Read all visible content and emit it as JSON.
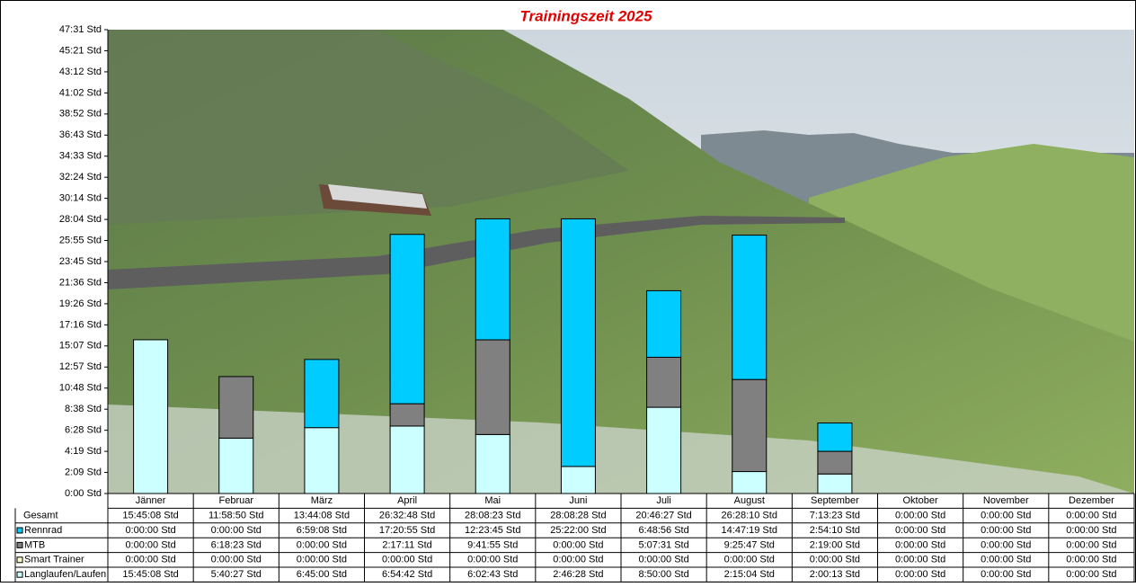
{
  "chart_data": {
    "type": "bar",
    "stacked": true,
    "title": "Trainingszeit 2025",
    "categories": [
      "Jänner",
      "Februar",
      "März",
      "April",
      "Mai",
      "Juni",
      "Juli",
      "August",
      "September",
      "Oktober",
      "November",
      "Dezember"
    ],
    "ylim": [
      0,
      47.52
    ],
    "yticks": [
      {
        "value": 0,
        "label": "0:00 Std"
      },
      {
        "value": 2.16,
        "label": "2:09 Std"
      },
      {
        "value": 4.32,
        "label": "4:19 Std"
      },
      {
        "value": 6.48,
        "label": "6:28 Std"
      },
      {
        "value": 8.64,
        "label": "8:38 Std"
      },
      {
        "value": 10.8,
        "label": "10:48 Std"
      },
      {
        "value": 12.96,
        "label": "12:57 Std"
      },
      {
        "value": 15.12,
        "label": "15:07 Std"
      },
      {
        "value": 17.28,
        "label": "17:16 Std"
      },
      {
        "value": 19.44,
        "label": "19:26 Std"
      },
      {
        "value": 21.6,
        "label": "21:36 Std"
      },
      {
        "value": 23.76,
        "label": "23:45 Std"
      },
      {
        "value": 25.92,
        "label": "25:55 Std"
      },
      {
        "value": 28.08,
        "label": "28:04 Std"
      },
      {
        "value": 30.24,
        "label": "30:14 Std"
      },
      {
        "value": 32.4,
        "label": "32:24 Std"
      },
      {
        "value": 34.56,
        "label": "34:33 Std"
      },
      {
        "value": 36.72,
        "label": "36:43 Std"
      },
      {
        "value": 38.88,
        "label": "38:52 Std"
      },
      {
        "value": 41.04,
        "label": "41:02 Std"
      },
      {
        "value": 43.2,
        "label": "43:12 Std"
      },
      {
        "value": 45.36,
        "label": "45:21 Std"
      },
      {
        "value": 47.52,
        "label": "47:31 Std"
      }
    ],
    "total_label": "Gesamt",
    "totals": [
      "15:45:08 Std",
      "11:58:50 Std",
      "13:44:08 Std",
      "26:32:48 Std",
      "28:08:23 Std",
      "28:08:28 Std",
      "20:46:27 Std",
      "26:28:10 Std",
      "7:13:23 Std",
      "0:00:00 Std",
      "0:00:00 Std",
      "0:00:00 Std"
    ],
    "series": [
      {
        "name": "Rennrad",
        "color": "#00ccff",
        "values": [
          0,
          0,
          6.986,
          17.349,
          12.396,
          25.367,
          6.816,
          14.789,
          2.903,
          0,
          0,
          0
        ],
        "value_labels": [
          "0:00:00 Std",
          "0:00:00 Std",
          "6:59:08 Std",
          "17:20:55 Std",
          "12:23:45 Std",
          "25:22:00 Std",
          "6:48:56 Std",
          "14:47:19 Std",
          "2:54:10 Std",
          "0:00:00 Std",
          "0:00:00 Std",
          "0:00:00 Std"
        ]
      },
      {
        "name": "MTB",
        "color": "#808080",
        "values": [
          0,
          6.306,
          0,
          2.286,
          9.699,
          0,
          5.125,
          9.43,
          2.317,
          0,
          0,
          0
        ],
        "value_labels": [
          "0:00:00 Std",
          "6:18:23 Std",
          "0:00:00 Std",
          "2:17:11 Std",
          "9:41:55 Std",
          "0:00:00 Std",
          "5:07:31 Std",
          "9:25:47 Std",
          "2:19:00 Std",
          "0:00:00 Std",
          "0:00:00 Std",
          "0:00:00 Std"
        ]
      },
      {
        "name": "Smart Trainer",
        "color": "#ffffcc",
        "values": [
          0,
          0,
          0,
          0,
          0,
          0,
          0,
          0,
          0,
          0,
          0,
          0
        ],
        "value_labels": [
          "0:00:00 Std",
          "0:00:00 Std",
          "0:00:00 Std",
          "0:00:00 Std",
          "0:00:00 Std",
          "0:00:00 Std",
          "0:00:00 Std",
          "0:00:00 Std",
          "0:00:00 Std",
          "0:00:00 Std",
          "0:00:00 Std",
          "0:00:00 Std"
        ]
      },
      {
        "name": "Langlaufen/Laufen",
        "color": "#ccffff",
        "values": [
          15.752,
          5.674,
          6.75,
          6.912,
          6.045,
          2.774,
          8.833,
          2.251,
          2.004,
          0,
          0,
          0
        ],
        "value_labels": [
          "15:45:08 Std",
          "5:40:27 Std",
          "6:45:00 Std",
          "6:54:42 Std",
          "6:02:43 Std",
          "2:46:28 Std",
          "8:50:00 Std",
          "2:15:04 Std",
          "2:00:13 Std",
          "0:00:00 Std",
          "0:00:00 Std",
          "0:00:00 Std"
        ]
      }
    ]
  }
}
